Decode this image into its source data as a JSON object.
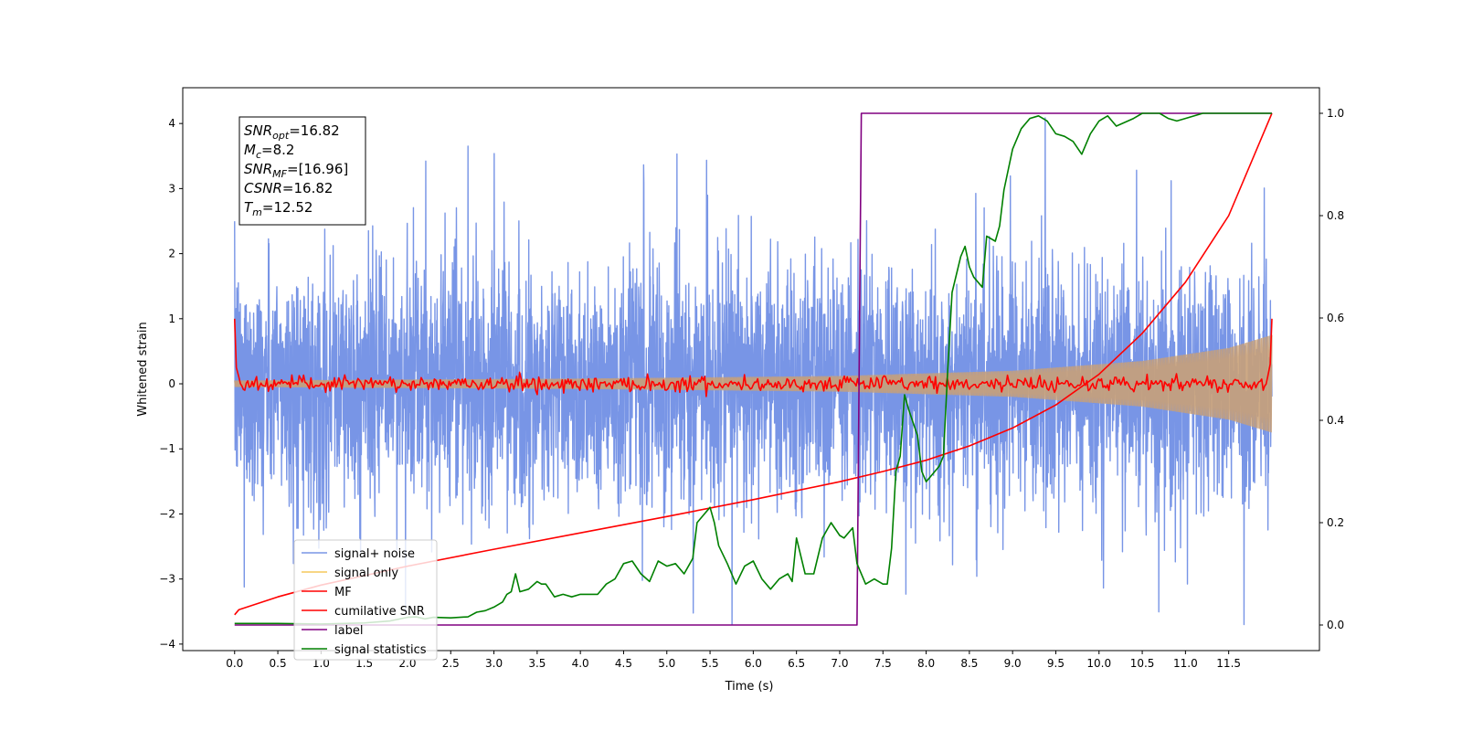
{
  "chart_data": {
    "type": "line",
    "xlabel": "Time (s)",
    "ylabel": "Whitened strain",
    "xlim": [
      -0.6,
      12.55
    ],
    "ylim": [
      -4.1,
      4.55
    ],
    "ylim_right": [
      -0.05,
      1.05
    ],
    "x_ticks": [
      "0.0",
      "0.5",
      "1.0",
      "1.5",
      "2.0",
      "2.5",
      "3.0",
      "3.5",
      "4.0",
      "4.5",
      "5.0",
      "5.5",
      "6.0",
      "6.5",
      "7.0",
      "7.5",
      "8.0",
      "8.5",
      "9.0",
      "9.5",
      "10.0",
      "10.5",
      "11.0",
      "11.5"
    ],
    "y_ticks": [
      "−4",
      "−3",
      "−2",
      "−1",
      "0",
      "1",
      "2",
      "3",
      "4"
    ],
    "y_ticks_right": [
      "0.0",
      "0.2",
      "0.4",
      "0.6",
      "0.8",
      "1.0"
    ],
    "info_box": [
      {
        "base": "SNR",
        "sub": "opt",
        "rest": "=16.82"
      },
      {
        "base": "M",
        "sub": "c",
        "rest": "=8.2"
      },
      {
        "base": "SNR",
        "sub": "MF",
        "rest": "=[16.96]"
      },
      {
        "base": "CSNR",
        "sub": "",
        "rest": "=16.82"
      },
      {
        "base": "T",
        "sub": "m",
        "rest": "=12.52"
      }
    ],
    "legend_placement": "lower-left",
    "legend": [
      {
        "name": "signal+ noise",
        "color": "#7895e6"
      },
      {
        "name": "signal only",
        "color": "#f5c85c"
      },
      {
        "name": "MF",
        "color": "#ff0000"
      },
      {
        "name": "cumilative SNR",
        "color": "#ff0000"
      },
      {
        "name": "label",
        "color": "#800080"
      },
      {
        "name": "signal statistics",
        "color": "#008000"
      }
    ],
    "series": [
      {
        "name": "signal+ noise",
        "axis": "left",
        "color": "#7895e6",
        "kind": "noise",
        "x_start": 0.0,
        "x_end": 12.0,
        "typical_range": [
          -2.2,
          2.1
        ],
        "peak_range": [
          -3.7,
          4.15
        ]
      },
      {
        "name": "signal only",
        "axis": "left",
        "color": "#c8a078",
        "kind": "chirp",
        "x_start": 0.0,
        "x_end": 12.0,
        "amplitude": [
          [
            0.0,
            0.05
          ],
          [
            4.0,
            0.08
          ],
          [
            7.0,
            0.12
          ],
          [
            9.0,
            0.2
          ],
          [
            10.5,
            0.35
          ],
          [
            11.5,
            0.55
          ],
          [
            12.0,
            0.75
          ]
        ]
      },
      {
        "name": "MF",
        "axis": "left",
        "color": "#ff0000",
        "kind": "noisy-flat",
        "x_start": 0.0,
        "x_end": 12.0,
        "level": 0.0,
        "jitter": 0.06,
        "x": [
          0.0,
          0.02,
          0.05,
          11.95,
          11.98,
          12.0
        ],
        "y": [
          1.0,
          0.25,
          0.1,
          0.1,
          0.3,
          1.0
        ]
      },
      {
        "name": "cumilative SNR",
        "axis": "right",
        "color": "#ff0000",
        "x": [
          0.0,
          0.05,
          0.5,
          1.0,
          2.0,
          3.0,
          4.0,
          5.0,
          6.0,
          7.0,
          7.5,
          8.0,
          8.5,
          9.0,
          9.5,
          10.0,
          10.5,
          11.0,
          11.5,
          12.0
        ],
        "y": [
          0.02,
          0.03,
          0.055,
          0.078,
          0.115,
          0.148,
          0.18,
          0.212,
          0.245,
          0.28,
          0.3,
          0.322,
          0.35,
          0.385,
          0.43,
          0.49,
          0.57,
          0.67,
          0.8,
          1.0
        ]
      },
      {
        "name": "label",
        "axis": "right",
        "color": "#800080",
        "x": [
          0.0,
          7.2,
          7.25,
          12.0
        ],
        "y": [
          0.0,
          0.0,
          1.0,
          1.0
        ]
      },
      {
        "name": "signal statistics",
        "axis": "right",
        "color": "#008000",
        "x": [
          0.0,
          0.5,
          1.0,
          1.5,
          1.8,
          2.0,
          2.1,
          2.2,
          2.3,
          2.5,
          2.7,
          2.8,
          2.9,
          3.0,
          3.1,
          3.15,
          3.2,
          3.25,
          3.3,
          3.4,
          3.5,
          3.55,
          3.6,
          3.7,
          3.8,
          3.9,
          4.0,
          4.2,
          4.3,
          4.4,
          4.5,
          4.6,
          4.7,
          4.8,
          4.9,
          5.0,
          5.1,
          5.2,
          5.3,
          5.35,
          5.4,
          5.5,
          5.55,
          5.6,
          5.7,
          5.8,
          5.9,
          6.0,
          6.1,
          6.2,
          6.3,
          6.4,
          6.45,
          6.5,
          6.6,
          6.7,
          6.8,
          6.9,
          7.0,
          7.05,
          7.15,
          7.2,
          7.3,
          7.4,
          7.5,
          7.55,
          7.6,
          7.65,
          7.7,
          7.75,
          7.8,
          7.9,
          7.95,
          8.0,
          8.1,
          8.15,
          8.2,
          8.25,
          8.3,
          8.4,
          8.45,
          8.5,
          8.55,
          8.6,
          8.65,
          8.7,
          8.8,
          8.85,
          8.9,
          9.0,
          9.1,
          9.2,
          9.3,
          9.4,
          9.5,
          9.6,
          9.7,
          9.8,
          9.9,
          10.0,
          10.1,
          10.2,
          10.4,
          10.5,
          10.7,
          10.8,
          10.9,
          11.0,
          11.2,
          11.3,
          11.5,
          11.8,
          12.0
        ],
        "y": [
          0.003,
          0.003,
          0.002,
          0.004,
          0.008,
          0.015,
          0.016,
          0.012,
          0.015,
          0.014,
          0.016,
          0.025,
          0.028,
          0.035,
          0.045,
          0.06,
          0.065,
          0.1,
          0.065,
          0.07,
          0.085,
          0.08,
          0.08,
          0.055,
          0.06,
          0.055,
          0.06,
          0.06,
          0.08,
          0.09,
          0.12,
          0.125,
          0.1,
          0.085,
          0.125,
          0.115,
          0.12,
          0.1,
          0.13,
          0.2,
          0.21,
          0.23,
          0.2,
          0.155,
          0.12,
          0.08,
          0.115,
          0.125,
          0.09,
          0.07,
          0.09,
          0.1,
          0.085,
          0.17,
          0.1,
          0.1,
          0.17,
          0.2,
          0.175,
          0.17,
          0.19,
          0.12,
          0.08,
          0.09,
          0.08,
          0.08,
          0.15,
          0.3,
          0.33,
          0.45,
          0.42,
          0.37,
          0.3,
          0.28,
          0.3,
          0.31,
          0.33,
          0.5,
          0.65,
          0.72,
          0.74,
          0.7,
          0.68,
          0.67,
          0.66,
          0.76,
          0.75,
          0.78,
          0.85,
          0.93,
          0.97,
          0.99,
          0.995,
          0.985,
          0.96,
          0.955,
          0.945,
          0.92,
          0.96,
          0.985,
          0.995,
          0.975,
          0.99,
          1.0,
          1.0,
          0.99,
          0.985,
          0.99,
          1.0,
          1.0,
          1.0,
          1.0,
          1.0
        ]
      }
    ]
  }
}
